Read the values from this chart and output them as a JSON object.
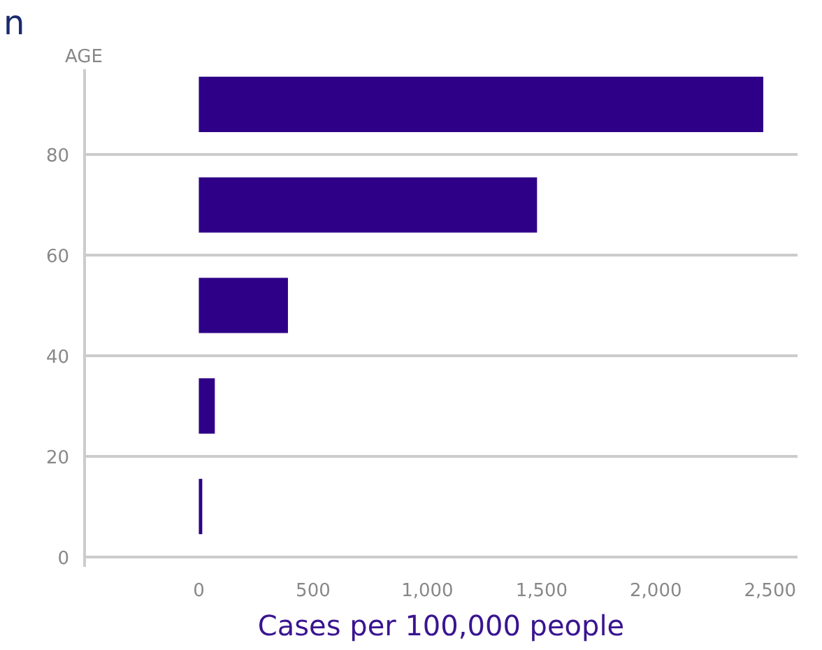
{
  "chart_data": {
    "type": "bar",
    "orientation": "horizontal",
    "xlabel": "Cases per 100,000 people",
    "ylabel": "AGE",
    "annotations": [
      "n"
    ],
    "x": [
      90,
      70,
      50,
      30,
      10
    ],
    "values": [
      2470,
      1480,
      390,
      70,
      15
    ],
    "color": "#2e0087",
    "xlim": [
      -500,
      2620
    ],
    "xticks": [
      0,
      500,
      {
        "value": 1000,
        "label": "1,000"
      },
      {
        "value": 1500,
        "label": "1,500"
      },
      {
        "value": 2000,
        "label": "2,000"
      },
      {
        "value": 2500,
        "label": "2,500"
      }
    ],
    "ylim": [
      -2,
      97
    ],
    "yticks": [
      0,
      20,
      40,
      60,
      80
    ],
    "grid": "y"
  }
}
